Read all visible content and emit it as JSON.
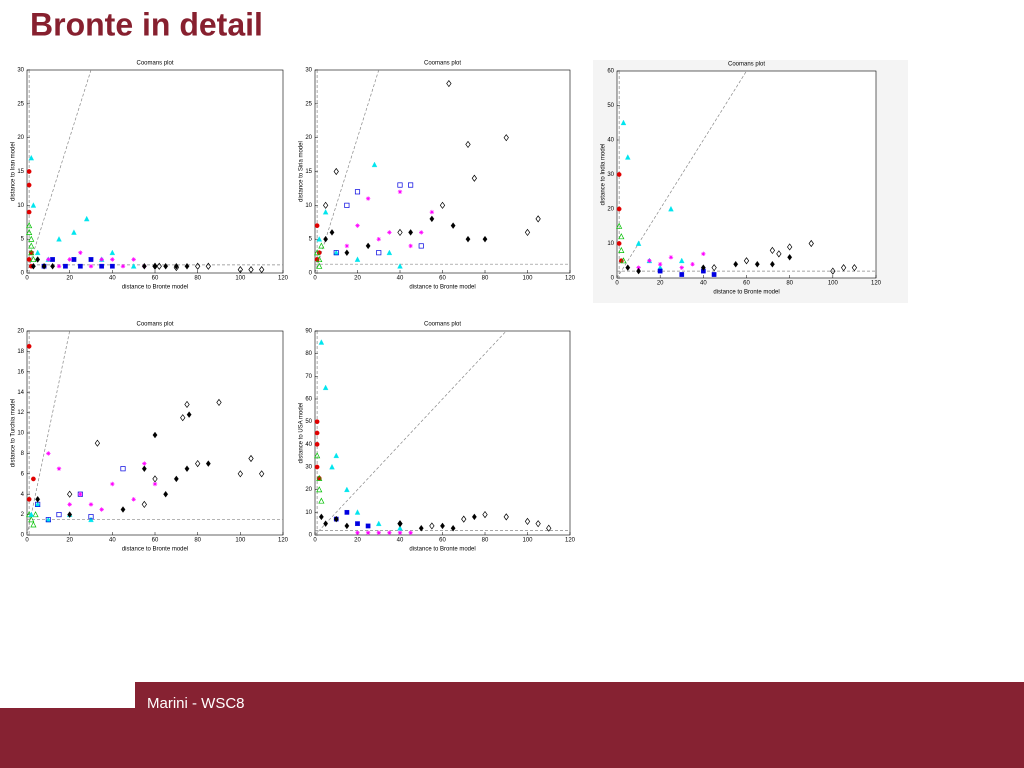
{
  "slide": {
    "title": "Bronte in detail",
    "footer": "Marini - WSC8"
  },
  "chart_data": [
    {
      "type": "scatter",
      "title": "Coomans plot",
      "x_label": "distance to Bronte model",
      "y_label": "distance to Iran model",
      "xlim": [
        0,
        120
      ],
      "ylim": [
        0,
        30
      ],
      "xticks": [
        0,
        20,
        40,
        60,
        80,
        100,
        120
      ],
      "yticks": [
        0,
        5,
        10,
        15,
        20,
        25,
        30
      ],
      "x_threshold": 1,
      "y_threshold": 1.2,
      "diagonal": true,
      "series": [
        {
          "color": "#e00000",
          "marker": "filled-circle",
          "x": [
            1,
            1,
            2,
            1,
            2,
            1
          ],
          "y": [
            13,
            9,
            3,
            2,
            1,
            15
          ]
        },
        {
          "color": "#00c000",
          "marker": "triangle",
          "x": [
            1,
            2,
            2,
            3,
            1,
            2
          ],
          "y": [
            7,
            5,
            4,
            2,
            6,
            3
          ]
        },
        {
          "color": "#00e5ee",
          "marker": "filled-triangle",
          "x": [
            2,
            3,
            5,
            10,
            15,
            22,
            28,
            35,
            40,
            50
          ],
          "y": [
            17,
            10,
            3,
            2,
            5,
            6,
            8,
            2,
            3,
            1
          ]
        },
        {
          "color": "#0000e0",
          "marker": "filled-square",
          "x": [
            8,
            12,
            18,
            22,
            25,
            30,
            35,
            40
          ],
          "y": [
            1,
            2,
            1,
            2,
            1,
            2,
            1,
            1
          ]
        },
        {
          "color": "#ff00ff",
          "marker": "star",
          "x": [
            10,
            15,
            20,
            25,
            30,
            35,
            40,
            45,
            50,
            55
          ],
          "y": [
            2,
            1,
            2,
            3,
            1,
            2,
            2,
            1,
            2,
            1
          ]
        },
        {
          "color": "#000000",
          "marker": "filled-diamond",
          "x": [
            3,
            5,
            8,
            12,
            55,
            60,
            65,
            70,
            75
          ],
          "y": [
            1,
            2,
            1,
            1,
            1,
            1,
            1,
            1,
            1
          ]
        },
        {
          "color": "#000000",
          "marker": "diamond",
          "x": [
            60,
            62,
            70,
            80,
            85,
            100,
            105,
            110
          ],
          "y": [
            1,
            1,
            0.8,
            1,
            1,
            0.5,
            0.5,
            0.5
          ]
        }
      ]
    },
    {
      "type": "scatter",
      "title": "Coomans plot",
      "x_label": "distance to Bronte model",
      "y_label": "distance to Siria model",
      "xlim": [
        0,
        120
      ],
      "ylim": [
        0,
        30
      ],
      "xticks": [
        0,
        20,
        40,
        60,
        80,
        100,
        120
      ],
      "yticks": [
        0,
        5,
        10,
        15,
        20,
        25,
        30
      ],
      "x_threshold": 1,
      "y_threshold": 1.3,
      "diagonal": true,
      "series": [
        {
          "color": "#e00000",
          "marker": "filled-circle",
          "x": [
            1,
            2,
            1
          ],
          "y": [
            7,
            3,
            2
          ]
        },
        {
          "color": "#00c000",
          "marker": "triangle",
          "x": [
            1,
            2,
            3,
            2
          ],
          "y": [
            3,
            2,
            4,
            1
          ]
        },
        {
          "color": "#00e5ee",
          "marker": "filled-triangle",
          "x": [
            2,
            5,
            10,
            20,
            28,
            35,
            40
          ],
          "y": [
            5,
            9,
            3,
            2,
            16,
            3,
            1
          ]
        },
        {
          "color": "#0000e0",
          "marker": "square",
          "x": [
            10,
            15,
            20,
            30,
            40,
            45,
            50
          ],
          "y": [
            3,
            10,
            12,
            3,
            13,
            13,
            4
          ]
        },
        {
          "color": "#ff00ff",
          "marker": "star",
          "x": [
            15,
            20,
            25,
            30,
            35,
            40,
            45,
            50,
            55
          ],
          "y": [
            4,
            7,
            11,
            5,
            6,
            12,
            4,
            6,
            9
          ]
        },
        {
          "color": "#000000",
          "marker": "filled-diamond",
          "x": [
            5,
            8,
            15,
            25,
            45,
            55,
            65,
            72,
            80
          ],
          "y": [
            5,
            6,
            3,
            4,
            6,
            8,
            7,
            5,
            5
          ]
        },
        {
          "color": "#000000",
          "marker": "diamond",
          "x": [
            5,
            10,
            40,
            60,
            63,
            72,
            75,
            90,
            100,
            105
          ],
          "y": [
            10,
            15,
            6,
            10,
            28,
            19,
            14,
            20,
            6,
            8
          ]
        }
      ]
    },
    {
      "type": "scatter",
      "title": "Coomans plot",
      "x_label": "distance to Bronte model",
      "y_label": "distance to India model",
      "xlim": [
        0,
        120
      ],
      "ylim": [
        0,
        60
      ],
      "xticks": [
        0,
        20,
        40,
        60,
        80,
        100,
        120
      ],
      "yticks": [
        0,
        10,
        20,
        30,
        40,
        50,
        60
      ],
      "x_threshold": 1,
      "y_threshold": 2,
      "diagonal": true,
      "series": [
        {
          "color": "#e00000",
          "marker": "filled-circle",
          "x": [
            1,
            1,
            1,
            2
          ],
          "y": [
            30,
            20,
            10,
            5
          ]
        },
        {
          "color": "#00c000",
          "marker": "triangle",
          "x": [
            1,
            2,
            2,
            3
          ],
          "y": [
            15,
            12,
            8,
            5
          ]
        },
        {
          "color": "#00e5ee",
          "marker": "filled-triangle",
          "x": [
            3,
            5,
            10,
            15,
            20,
            25,
            30
          ],
          "y": [
            45,
            35,
            10,
            5,
            3,
            20,
            5
          ]
        },
        {
          "color": "#0000e0",
          "marker": "filled-square",
          "x": [
            20,
            30,
            40,
            45
          ],
          "y": [
            2,
            1,
            2,
            1
          ]
        },
        {
          "color": "#ff00ff",
          "marker": "star",
          "x": [
            10,
            15,
            20,
            25,
            30,
            35,
            40
          ],
          "y": [
            3,
            5,
            4,
            6,
            3,
            4,
            7
          ]
        },
        {
          "color": "#000000",
          "marker": "filled-diamond",
          "x": [
            5,
            10,
            40,
            55,
            65,
            72,
            80
          ],
          "y": [
            3,
            2,
            3,
            4,
            4,
            4,
            6
          ]
        },
        {
          "color": "#000000",
          "marker": "diamond",
          "x": [
            45,
            60,
            72,
            75,
            80,
            90,
            100,
            105,
            110
          ],
          "y": [
            3,
            5,
            8,
            7,
            9,
            10,
            2,
            3,
            3
          ]
        }
      ]
    },
    {
      "type": "scatter",
      "title": "Coomans plot",
      "x_label": "distance to Bronte model",
      "y_label": "distance to Turchia model",
      "xlim": [
        0,
        120
      ],
      "ylim": [
        0,
        20
      ],
      "xticks": [
        0,
        20,
        40,
        60,
        80,
        100,
        120
      ],
      "yticks": [
        0,
        2,
        4,
        6,
        8,
        10,
        12,
        14,
        16,
        18,
        20
      ],
      "x_threshold": 1,
      "y_threshold": 1.5,
      "diagonal": true,
      "series": [
        {
          "color": "#e00000",
          "marker": "filled-circle",
          "x": [
            1,
            1,
            3
          ],
          "y": [
            18.5,
            3.5,
            5.5
          ]
        },
        {
          "color": "#00c000",
          "marker": "triangle",
          "x": [
            1,
            2,
            3,
            4
          ],
          "y": [
            2,
            1.5,
            1,
            2
          ]
        },
        {
          "color": "#00e5ee",
          "marker": "filled-triangle",
          "x": [
            2,
            5,
            10,
            20,
            30
          ],
          "y": [
            2,
            3,
            1.5,
            2,
            1.5
          ]
        },
        {
          "color": "#0000e0",
          "marker": "square",
          "x": [
            5,
            10,
            15,
            25,
            30,
            45
          ],
          "y": [
            3,
            1.5,
            2,
            4,
            1.8,
            6.5
          ]
        },
        {
          "color": "#ff00ff",
          "marker": "star",
          "x": [
            10,
            15,
            20,
            25,
            30,
            35,
            40,
            50,
            55,
            60
          ],
          "y": [
            8,
            6.5,
            3,
            4,
            3,
            2.5,
            5,
            3.5,
            7,
            5
          ]
        },
        {
          "color": "#000000",
          "marker": "filled-diamond",
          "x": [
            5,
            20,
            45,
            55,
            60,
            65,
            70,
            75,
            76,
            85
          ],
          "y": [
            3.5,
            2,
            2.5,
            6.5,
            9.8,
            4,
            5.5,
            6.5,
            11.8,
            7
          ]
        },
        {
          "color": "#000000",
          "marker": "diamond",
          "x": [
            20,
            33,
            55,
            60,
            73,
            75,
            80,
            90,
            100,
            105,
            110
          ],
          "y": [
            4,
            9,
            3,
            5.5,
            11.5,
            12.8,
            7,
            13,
            6,
            7.5,
            6
          ]
        }
      ]
    },
    {
      "type": "scatter",
      "title": "Coomans plot",
      "x_label": "distance to Bronte model",
      "y_label": "distance to USA model",
      "xlim": [
        0,
        120
      ],
      "ylim": [
        0,
        90
      ],
      "xticks": [
        0,
        20,
        40,
        60,
        80,
        100,
        120
      ],
      "yticks": [
        0,
        10,
        20,
        30,
        40,
        50,
        60,
        70,
        80,
        90
      ],
      "x_threshold": 1,
      "y_threshold": 2,
      "diagonal": true,
      "series": [
        {
          "color": "#e00000",
          "marker": "filled-circle",
          "x": [
            1,
            1,
            1,
            2,
            1
          ],
          "y": [
            50,
            40,
            30,
            25,
            45
          ]
        },
        {
          "color": "#00c000",
          "marker": "triangle",
          "x": [
            1,
            2,
            2,
            3
          ],
          "y": [
            35,
            25,
            20,
            15
          ]
        },
        {
          "color": "#00e5ee",
          "marker": "filled-triangle",
          "x": [
            3,
            5,
            8,
            10,
            15,
            20,
            30,
            40
          ],
          "y": [
            85,
            65,
            30,
            35,
            20,
            10,
            5,
            3
          ]
        },
        {
          "color": "#0000e0",
          "marker": "filled-square",
          "x": [
            10,
            15,
            20,
            25
          ],
          "y": [
            7,
            10,
            5,
            4
          ]
        },
        {
          "color": "#ff00ff",
          "marker": "star",
          "x": [
            20,
            25,
            30,
            35,
            40,
            45
          ],
          "y": [
            1,
            1,
            1,
            1,
            1,
            1
          ]
        },
        {
          "color": "#000000",
          "marker": "filled-diamond",
          "x": [
            3,
            5,
            10,
            15,
            40,
            50,
            60,
            65,
            75
          ],
          "y": [
            8,
            5,
            7,
            4,
            5,
            3,
            4,
            3,
            8
          ]
        },
        {
          "color": "#000000",
          "marker": "diamond",
          "x": [
            40,
            55,
            70,
            80,
            90,
            100,
            105,
            110
          ],
          "y": [
            5,
            4,
            7,
            9,
            8,
            6,
            5,
            3
          ]
        }
      ]
    }
  ]
}
